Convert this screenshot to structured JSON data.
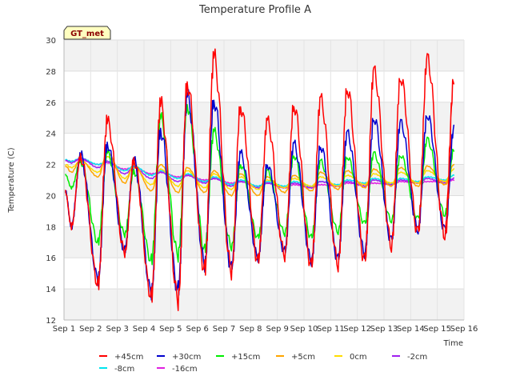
{
  "chart_data": {
    "type": "line",
    "title": "Temperature Profile A",
    "xlabel": "Time",
    "ylabel": "Temperature (C)",
    "badge": "GT_met",
    "xlim": [
      1,
      16
    ],
    "ylim": [
      12,
      30
    ],
    "x_ticks": [
      {
        "value": 1,
        "label": "Sep 1"
      },
      {
        "value": 2,
        "label": "Sep 2"
      },
      {
        "value": 3,
        "label": "Sep 3"
      },
      {
        "value": 4,
        "label": "Sep 4"
      },
      {
        "value": 5,
        "label": "Sep 5"
      },
      {
        "value": 6,
        "label": "Sep 6"
      },
      {
        "value": 7,
        "label": "Sep 7"
      },
      {
        "value": 8,
        "label": "Sep 8"
      },
      {
        "value": 9,
        "label": "Sep 9"
      },
      {
        "value": 10,
        "label": "Sep 10"
      },
      {
        "value": 11,
        "label": "Sep 11"
      },
      {
        "value": 12,
        "label": "Sep 12"
      },
      {
        "value": 13,
        "label": "Sep 13"
      },
      {
        "value": 14,
        "label": "Sep 14"
      },
      {
        "value": 15,
        "label": "Sep 15"
      },
      {
        "value": 16,
        "label": "Sep 16"
      }
    ],
    "y_ticks": [
      12,
      14,
      16,
      18,
      20,
      22,
      24,
      26,
      28,
      30
    ],
    "grid": true,
    "legend_position": "bottom",
    "days": [
      1.0,
      2.0,
      3.0,
      4.0,
      5.0,
      6.0,
      7.0,
      8.0,
      9.0,
      10.0,
      11.0,
      12.0,
      13.0,
      14.0,
      15.0
    ],
    "series": [
      {
        "name": "+45cm",
        "color": "#ff0000",
        "x_end": 15.3,
        "day_min": [
          18.0,
          14.3,
          16.3,
          13.5,
          13.3,
          15.2,
          15.1,
          15.8,
          16.2,
          15.5,
          15.6,
          15.8,
          16.8,
          17.6,
          17.5
        ],
        "day_max": [
          22.5,
          24.8,
          22.3,
          25.9,
          27.2,
          28.9,
          25.7,
          24.8,
          25.8,
          26.2,
          26.9,
          28.0,
          27.6,
          28.8,
          27.5
        ]
      },
      {
        "name": "+30cm",
        "color": "#0000cd",
        "x_end": 15.3,
        "day_min": [
          18.0,
          14.6,
          16.5,
          13.8,
          13.9,
          15.6,
          15.4,
          16.0,
          16.4,
          15.8,
          15.9,
          16.3,
          17.1,
          17.8,
          17.8
        ],
        "day_max": [
          22.6,
          23.3,
          22.2,
          24.2,
          26.4,
          26.1,
          22.7,
          22.0,
          23.3,
          23.2,
          24.0,
          25.0,
          24.7,
          25.2,
          24.3
        ]
      },
      {
        "name": "+15cm",
        "color": "#00ee00",
        "x_end": 15.3,
        "day_min": [
          20.5,
          17.0,
          17.5,
          15.8,
          16.2,
          16.5,
          16.7,
          17.3,
          17.6,
          17.3,
          17.7,
          18.2,
          18.4,
          18.5,
          18.8
        ],
        "day_max": [
          22.2,
          22.8,
          21.6,
          25.0,
          25.8,
          24.1,
          22.0,
          21.6,
          22.6,
          22.2,
          22.5,
          22.7,
          22.6,
          23.6,
          23.0
        ]
      },
      {
        "name": "+5cm",
        "color": "#ffa500",
        "x_end": 15.3,
        "day_min": [
          21.5,
          21.2,
          20.8,
          20.3,
          20.2,
          20.2,
          20.0,
          20.0,
          20.2,
          20.3,
          20.4,
          20.5,
          20.6,
          20.6,
          20.7
        ],
        "day_max": [
          22.3,
          22.8,
          22.0,
          22.0,
          21.8,
          21.6,
          21.4,
          21.2,
          21.3,
          21.5,
          21.6,
          21.7,
          21.8,
          21.9,
          22.0
        ]
      },
      {
        "name": "0cm",
        "color": "#ffdd00",
        "x_end": 15.3,
        "day_min": [
          21.8,
          21.5,
          21.1,
          20.7,
          20.6,
          20.5,
          20.4,
          20.4,
          20.5,
          20.6,
          20.6,
          20.7,
          20.8,
          20.8,
          20.9
        ],
        "day_max": [
          22.2,
          22.5,
          21.8,
          21.7,
          21.6,
          21.4,
          21.2,
          21.0,
          21.1,
          21.2,
          21.3,
          21.4,
          21.5,
          21.6,
          21.7
        ]
      },
      {
        "name": "-2cm",
        "color": "#a020f0",
        "x_end": 15.3,
        "day_min": [
          22.1,
          21.8,
          21.4,
          21.1,
          20.9,
          20.8,
          20.6,
          20.5,
          20.5,
          20.5,
          20.6,
          20.6,
          20.7,
          20.8,
          20.8
        ],
        "day_max": [
          22.4,
          22.2,
          21.8,
          21.5,
          21.3,
          21.1,
          20.9,
          20.8,
          20.8,
          20.9,
          20.9,
          21.0,
          21.0,
          21.1,
          21.1
        ]
      },
      {
        "name": "-8cm",
        "color": "#00e5ee",
        "x_end": 15.3,
        "day_min": [
          22.2,
          22.0,
          21.6,
          21.3,
          21.1,
          20.9,
          20.7,
          20.6,
          20.6,
          20.6,
          20.7,
          20.8,
          20.8,
          20.9,
          21.0
        ],
        "day_max": [
          22.4,
          22.2,
          21.9,
          21.6,
          21.4,
          21.2,
          21.0,
          20.9,
          20.9,
          20.9,
          21.0,
          21.1,
          21.1,
          21.2,
          21.3
        ]
      },
      {
        "name": "-16cm",
        "color": "#e020e0",
        "x_end": 15.3,
        "day_min": [
          22.2,
          22.0,
          21.7,
          21.4,
          21.2,
          21.0,
          20.8,
          20.6,
          20.5,
          20.5,
          20.6,
          20.7,
          20.7,
          20.8,
          20.9
        ],
        "day_max": [
          22.3,
          22.1,
          21.8,
          21.5,
          21.3,
          21.1,
          20.9,
          20.8,
          20.7,
          20.7,
          20.8,
          20.8,
          20.9,
          20.9,
          21.0
        ]
      }
    ]
  }
}
